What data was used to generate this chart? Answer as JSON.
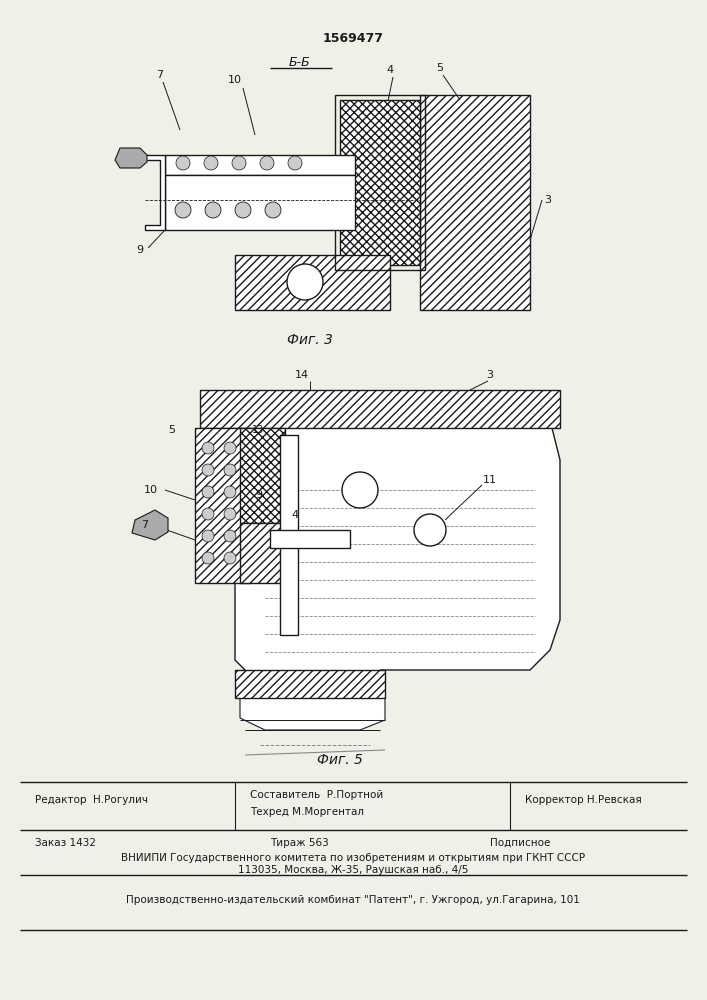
{
  "patent_number": "1569477",
  "fig3_label": "Фиг. 3",
  "fig5_label": "Фиг. 5",
  "section_label": "Б-Б",
  "bg_color": "#f0efe8",
  "line_color": "#1a1a1a",
  "footer": {
    "editor": "Редактор  Н.Рогулич",
    "composer": "Составитель  Р.Портной",
    "techred": "Техред М.Моргентал",
    "corrector": "Корректор Н.Ревская",
    "order": "Заказ 1432",
    "tirazh": "Тираж 563",
    "podpisnoe": "Подписное",
    "vniip1": "ВНИИПИ Государственного комитета по изобретениям и открытиям при ГКНТ СССР",
    "vniip2": "113035, Москва, Ж-35, Раушская наб., 4/5",
    "factory": "Производственно-издательский комбинат \"Патент\", г. Ужгород, ул.Гагарина, 101"
  }
}
